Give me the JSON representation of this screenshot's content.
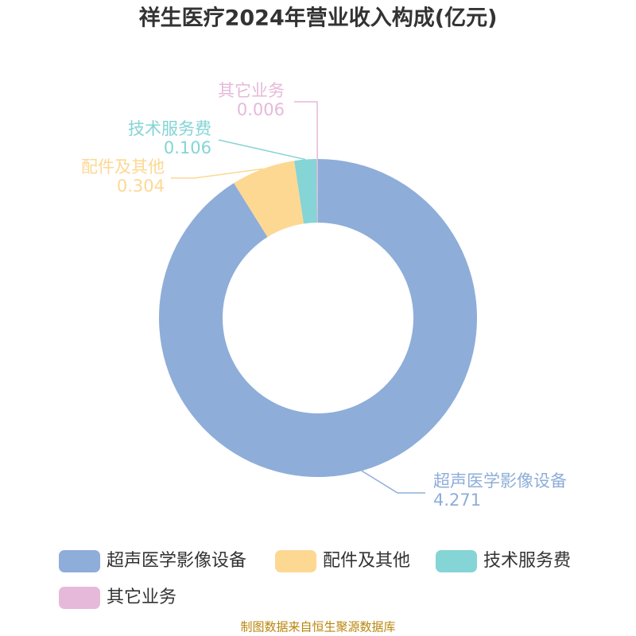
{
  "chart_data": {
    "type": "donut",
    "title": "祥生医疗2024年营业收入构成(亿元)",
    "categories": [
      "超声医学影像设备",
      "配件及其他",
      "技术服务费",
      "其它业务"
    ],
    "values": [
      4.271,
      0.304,
      0.106,
      0.006
    ],
    "colors": [
      "#8eadd9",
      "#fdd893",
      "#85d4d6",
      "#e6b9da"
    ],
    "source": "制图数据来自恒生聚源数据库"
  }
}
